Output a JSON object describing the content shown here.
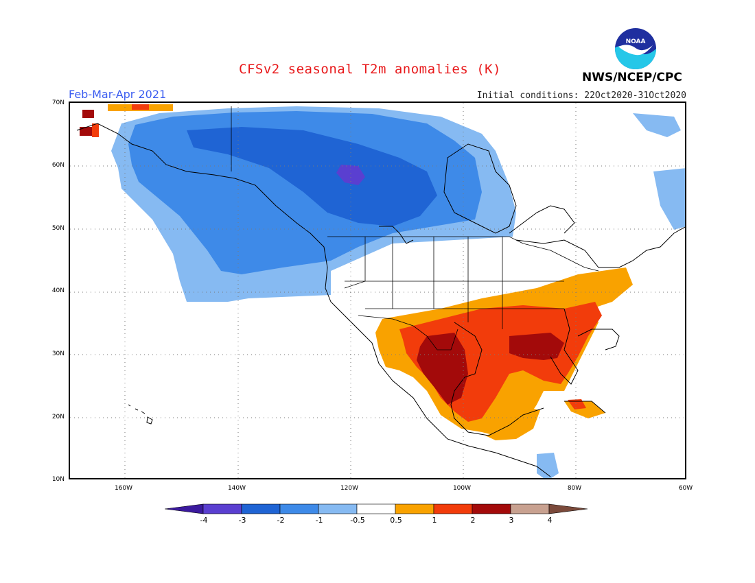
{
  "title": "CFSv2 seasonal T2m anomalies (K)",
  "season": "Feb-Mar-Apr 2021",
  "initial_conditions": "Initial conditions: 22Oct2020-31Oct2020",
  "agency": "NWS/NCEP/CPC",
  "logo_text": "NOAA",
  "map": {
    "region": "North America",
    "lat_range": [
      10,
      70
    ],
    "lon_range": [
      -170,
      -60
    ],
    "lat_labels": [
      "70N",
      "60N",
      "50N",
      "40N",
      "30N",
      "20N",
      "10N"
    ],
    "lon_labels": [
      "160W",
      "140W",
      "120W",
      "100W",
      "80W",
      "60W"
    ]
  },
  "colorbar": {
    "labels": [
      "-4",
      "-3",
      "-2",
      "-1",
      "-0.5",
      "0.5",
      "1",
      "2",
      "3",
      "4"
    ],
    "colors": [
      "#3b1a9e",
      "#5a3fd0",
      "#1f64d4",
      "#3e8ae8",
      "#86baf2",
      "#ffffff",
      "#f9a200",
      "#f23c0b",
      "#a30a0a",
      "#c8a190",
      "#7b4a3b"
    ]
  },
  "colors": {
    "title": "#e8191b",
    "season": "#3a5cf0"
  }
}
